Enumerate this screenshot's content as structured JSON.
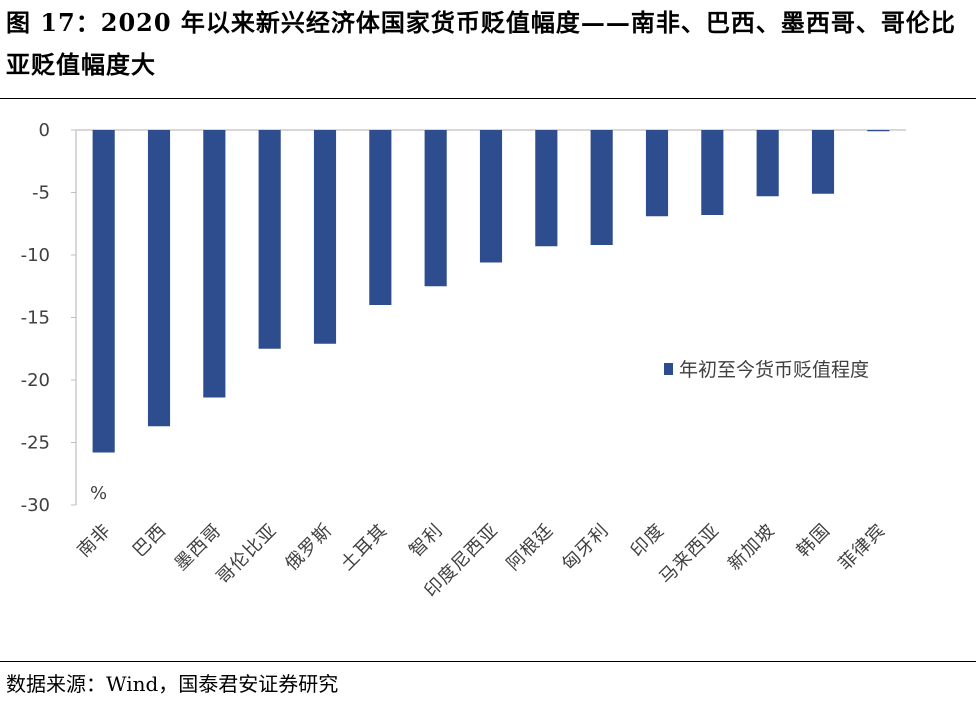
{
  "figure": {
    "title": "图 17：2020 年以来新兴经济体国家货币贬值幅度——南非、巴西、墨西哥、哥伦比亚贬值幅度大",
    "source": "数据来源：Wind，国泰君安证券研究"
  },
  "chart_data": {
    "type": "bar",
    "categories": [
      "南非",
      "巴西",
      "墨西哥",
      "哥伦比亚",
      "俄罗斯",
      "土耳其",
      "智利",
      "印度尼西亚",
      "阿根廷",
      "匈牙利",
      "印度",
      "马来西亚",
      "新加坡",
      "韩国",
      "菲律宾"
    ],
    "series": [
      {
        "name": "年初至今货币贬值程度",
        "values": [
          -25.8,
          -23.7,
          -21.4,
          -17.5,
          -17.1,
          -14.0,
          -12.5,
          -10.6,
          -9.3,
          -9.2,
          -6.9,
          -6.8,
          -5.3,
          -5.1,
          -0.1
        ],
        "color": "#2E4D8E"
      }
    ],
    "ylim": [
      -30,
      0
    ],
    "yticks": [
      0,
      -5,
      -10,
      -15,
      -20,
      -25,
      -30
    ],
    "unit_label": "%",
    "legend_position": "right-middle",
    "grid": false
  }
}
